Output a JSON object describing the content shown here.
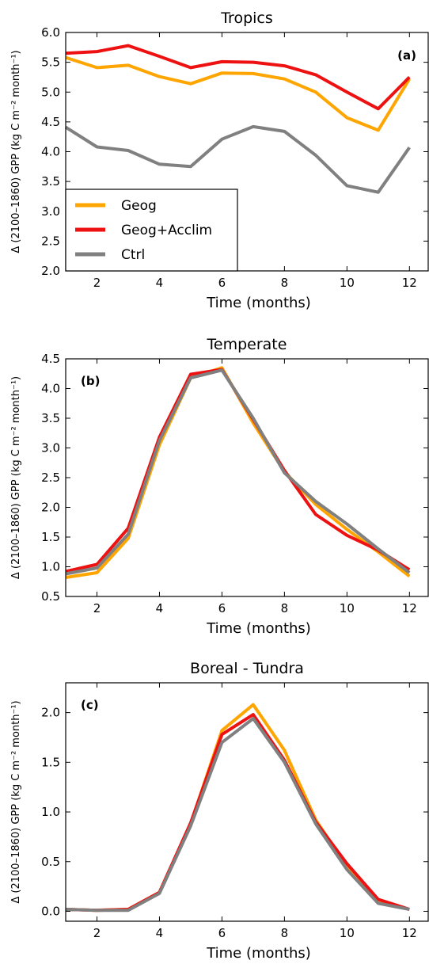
{
  "chart_data": [
    {
      "type": "line",
      "title": "Tropics",
      "panel_label": "(a)",
      "xlabel": "Time (months)",
      "ylabel": "Δ (2100–1860) GPP (kg C m⁻² month⁻¹)",
      "xlim": [
        1,
        12.6
      ],
      "ylim": [
        2.0,
        6.0
      ],
      "x": [
        1,
        2,
        3,
        4,
        5,
        6,
        7,
        8,
        9,
        10,
        11,
        12
      ],
      "x_ticks": [
        "2",
        "4",
        "6",
        "8",
        "10",
        "12"
      ],
      "y_ticks": [
        "2.0",
        "2.5",
        "3.0",
        "3.5",
        "4.0",
        "4.5",
        "5.0",
        "5.5",
        "6.0"
      ],
      "legend_position": "lower-left",
      "series": [
        {
          "name": "Geog",
          "color": "#ffa500",
          "values": [
            5.58,
            5.41,
            5.45,
            5.26,
            5.14,
            5.32,
            5.31,
            5.22,
            5.0,
            4.57,
            4.36,
            5.22
          ]
        },
        {
          "name": "Geog+Acclim",
          "color": "#ee1111",
          "values": [
            5.65,
            5.68,
            5.78,
            5.6,
            5.41,
            5.51,
            5.5,
            5.44,
            5.29,
            5.0,
            4.72,
            5.25
          ]
        },
        {
          "name": "Ctrl",
          "color": "#808080",
          "values": [
            4.41,
            4.08,
            4.02,
            3.79,
            3.75,
            4.21,
            4.42,
            4.34,
            3.94,
            3.43,
            3.32,
            4.07
          ]
        }
      ]
    },
    {
      "type": "line",
      "title": "Temperate",
      "panel_label": "(b)",
      "xlabel": "Time (months)",
      "ylabel": "Δ (2100–1860) GPP (kg C m⁻² month⁻¹)",
      "xlim": [
        1,
        12.6
      ],
      "ylim": [
        0.5,
        4.5
      ],
      "x": [
        1,
        2,
        3,
        4,
        5,
        6,
        7,
        8,
        9,
        10,
        11,
        12
      ],
      "x_ticks": [
        "2",
        "4",
        "6",
        "8",
        "10",
        "12"
      ],
      "y_ticks": [
        "0.5",
        "1.0",
        "1.5",
        "2.0",
        "2.5",
        "3.0",
        "3.5",
        "4.0",
        "4.5"
      ],
      "series": [
        {
          "name": "Geog",
          "color": "#ffa500",
          "values": [
            0.82,
            0.9,
            1.48,
            3.05,
            4.18,
            4.35,
            3.42,
            2.6,
            2.05,
            1.63,
            1.25,
            0.84
          ]
        },
        {
          "name": "Geog+Acclim",
          "color": "#ee1111",
          "values": [
            0.92,
            1.04,
            1.65,
            3.18,
            4.24,
            4.32,
            3.48,
            2.62,
            1.88,
            1.53,
            1.28,
            0.95
          ]
        },
        {
          "name": "Ctrl",
          "color": "#808080",
          "values": [
            0.88,
            0.98,
            1.55,
            3.12,
            4.18,
            4.31,
            3.5,
            2.58,
            2.1,
            1.72,
            1.3,
            0.9
          ]
        }
      ]
    },
    {
      "type": "line",
      "title": "Boreal - Tundra",
      "panel_label": "(c)",
      "xlabel": "Time (months)",
      "ylabel": "Δ (2100–1860) GPP (kg C m⁻² month⁻¹)",
      "xlim": [
        1,
        12.6
      ],
      "ylim": [
        -0.1,
        2.3
      ],
      "x": [
        1,
        2,
        3,
        4,
        5,
        6,
        7,
        8,
        9,
        10,
        11,
        12
      ],
      "x_ticks": [
        "2",
        "4",
        "6",
        "8",
        "10",
        "12"
      ],
      "y_ticks": [
        "0.0",
        "0.5",
        "1.0",
        "1.5",
        "2.0"
      ],
      "y_tick_values": [
        0.0,
        0.5,
        1.0,
        1.5,
        2.0
      ],
      "series": [
        {
          "name": "Geog",
          "color": "#ffa500",
          "values": [
            0.02,
            0.01,
            0.02,
            0.19,
            0.88,
            1.82,
            2.08,
            1.62,
            0.92,
            0.45,
            0.1,
            0.02
          ]
        },
        {
          "name": "Geog+Acclim",
          "color": "#ee1111",
          "values": [
            0.02,
            0.01,
            0.02,
            0.19,
            0.89,
            1.78,
            1.98,
            1.52,
            0.9,
            0.48,
            0.12,
            0.02
          ]
        },
        {
          "name": "Ctrl",
          "color": "#808080",
          "values": [
            0.02,
            0.01,
            0.01,
            0.18,
            0.86,
            1.7,
            1.94,
            1.5,
            0.88,
            0.42,
            0.08,
            0.02
          ]
        }
      ]
    }
  ]
}
